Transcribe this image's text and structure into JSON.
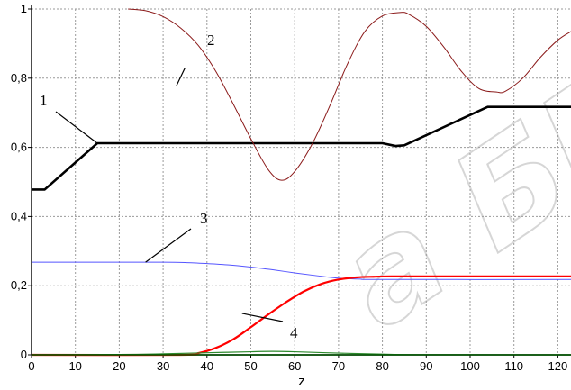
{
  "chart_data": {
    "type": "line",
    "title": "",
    "xlabel": "z",
    "ylabel": "",
    "xlim": [
      0,
      123
    ],
    "ylim": [
      0,
      1
    ],
    "grid": true,
    "x_ticks": [
      0,
      10,
      20,
      30,
      40,
      50,
      60,
      70,
      80,
      90,
      100,
      110,
      120
    ],
    "x_tick_labels": [
      "0",
      "10",
      "20",
      "30",
      "40",
      "50",
      "60",
      "70",
      "80",
      "90",
      "100",
      "110",
      "120"
    ],
    "y_ticks": [
      0,
      0.2,
      0.4,
      0.6,
      0.8,
      1.0
    ],
    "y_tick_labels": [
      "0",
      "0,2",
      "0,4",
      "0,6",
      "0,8",
      "1"
    ],
    "series": [
      {
        "color": "#000000",
        "x": [
          0,
          3,
          15,
          80,
          83,
          85,
          104,
          123
        ],
        "y": [
          0.478,
          0.478,
          0.612,
          0.612,
          0.604,
          0.606,
          0.717,
          0.717
        ]
      },
      {
        "color": "#8b1a1a",
        "x": [
          22,
          26,
          30,
          34,
          38,
          42,
          46,
          50,
          54,
          57,
          60,
          64,
          68,
          72,
          76,
          80,
          84,
          86,
          90,
          94,
          98,
          102,
          106,
          108,
          112,
          116,
          120,
          123
        ],
        "y": [
          1.0,
          0.995,
          0.978,
          0.945,
          0.895,
          0.82,
          0.725,
          0.625,
          0.535,
          0.505,
          0.53,
          0.61,
          0.72,
          0.84,
          0.935,
          0.98,
          0.99,
          0.985,
          0.95,
          0.89,
          0.82,
          0.77,
          0.76,
          0.762,
          0.8,
          0.86,
          0.91,
          0.935
        ]
      },
      {
        "color": "#5555ff",
        "x": [
          0,
          20,
          30,
          35,
          40,
          45,
          50,
          55,
          60,
          65,
          70,
          75,
          80,
          123
        ],
        "y": [
          0.268,
          0.268,
          0.268,
          0.267,
          0.264,
          0.26,
          0.254,
          0.246,
          0.237,
          0.229,
          0.222,
          0.219,
          0.218,
          0.218
        ]
      },
      {
        "color": "#ff0000",
        "x": [
          0,
          34,
          38,
          42,
          46,
          50,
          54,
          58,
          62,
          66,
          70,
          74,
          78,
          82,
          90,
          100,
          123
        ],
        "y": [
          0,
          0,
          0.005,
          0.02,
          0.045,
          0.08,
          0.117,
          0.152,
          0.183,
          0.205,
          0.218,
          0.224,
          0.226,
          0.227,
          0.227,
          0.227,
          0.227
        ]
      },
      {
        "color": "#2e8b2e",
        "x": [
          0,
          20,
          30,
          40,
          50,
          55,
          60,
          70,
          80,
          90,
          123
        ],
        "y": [
          0,
          0.001,
          0.003,
          0.006,
          0.009,
          0.01,
          0.009,
          0.005,
          0.002,
          0.0005,
          0
        ]
      },
      {
        "color": "#005500",
        "x": [
          0,
          123
        ],
        "y": [
          0,
          0
        ]
      }
    ],
    "annotations": [
      {
        "text": "1",
        "target": [
          15,
          0.612
        ]
      },
      {
        "text": "2",
        "target": [
          35,
          0.83
        ]
      },
      {
        "text": "3",
        "target": [
          26,
          0.268
        ]
      },
      {
        "text": "4",
        "target": [
          48,
          0.12
        ]
      }
    ],
    "watermark": "a БГУ"
  }
}
